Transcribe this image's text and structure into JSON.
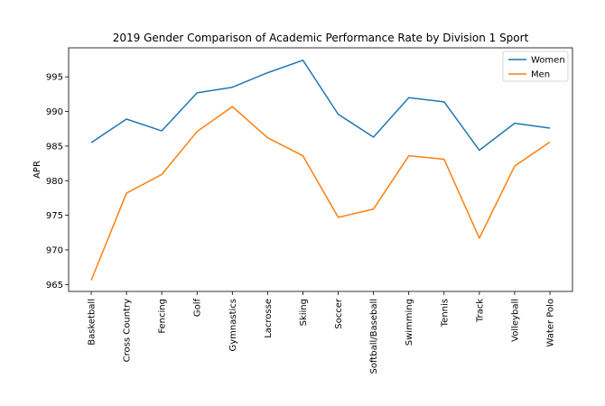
{
  "chart_data": {
    "type": "line",
    "title": "2019 Gender Comparison of Academic Performance Rate by Division 1 Sport",
    "xlabel": "",
    "ylabel": "APR",
    "categories": [
      "Basketball",
      "Cross Country",
      "Fencing",
      "Golf",
      "Gymnastics",
      "Lacrosse",
      "Skiing",
      "Soccer",
      "Softball/Baseball",
      "Swimming",
      "Tennis",
      "Track",
      "Volleyball",
      "Water Polo"
    ],
    "series": [
      {
        "name": "Women",
        "color": "#1f77b4",
        "values": [
          985.5,
          988.9,
          987.2,
          992.7,
          993.5,
          995.6,
          997.4,
          989.6,
          986.3,
          992.0,
          991.4,
          984.4,
          988.3,
          987.6
        ]
      },
      {
        "name": "Men",
        "color": "#ff7f0e",
        "values": [
          965.6,
          978.2,
          980.9,
          987.1,
          990.7,
          986.2,
          983.6,
          974.7,
          975.9,
          983.6,
          983.1,
          971.7,
          982.1,
          985.6
        ]
      }
    ],
    "ylim": [
      964.0,
      999.2
    ],
    "yticks": [
      965,
      970,
      975,
      980,
      985,
      990,
      995
    ],
    "grid": false,
    "legend": "top-right"
  }
}
